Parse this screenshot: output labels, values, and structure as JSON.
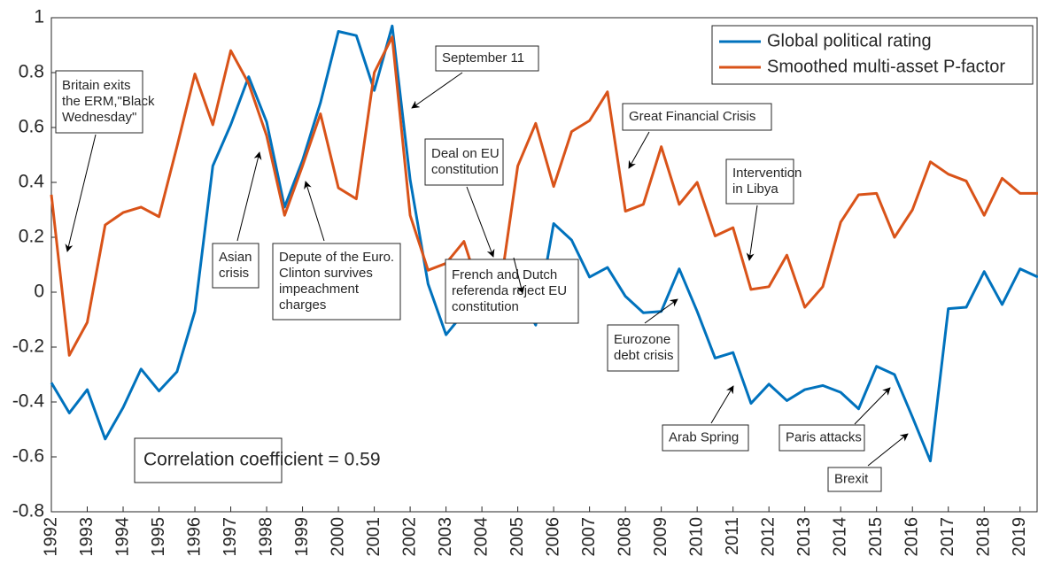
{
  "chart_data": {
    "type": "line",
    "x": [
      1992,
      1992.5,
      1993,
      1993.5,
      1994,
      1994.5,
      1995,
      1995.5,
      1996,
      1996.5,
      1997,
      1997.5,
      1998,
      1998.5,
      1999,
      1999.5,
      2000,
      2000.5,
      2001,
      2001.5,
      2002,
      2002.5,
      2003,
      2003.5,
      2004,
      2004.5,
      2005,
      2005.5,
      2006,
      2006.5,
      2007,
      2007.5,
      2008,
      2008.5,
      2009,
      2009.5,
      2010,
      2010.5,
      2011,
      2011.5,
      2012,
      2012.5,
      2013,
      2013.5,
      2014,
      2014.5,
      2015,
      2015.5,
      2016,
      2016.5,
      2017,
      2017.5,
      2018,
      2018.5,
      2019,
      2019.5
    ],
    "series": [
      {
        "name": "Global political rating",
        "color": "#0072bd",
        "values": [
          -0.33,
          -0.44,
          -0.355,
          -0.535,
          -0.42,
          -0.28,
          -0.36,
          -0.29,
          -0.07,
          0.46,
          0.61,
          0.785,
          0.62,
          0.31,
          0.48,
          0.69,
          0.95,
          0.935,
          0.735,
          0.97,
          0.41,
          0.03,
          -0.155,
          -0.075,
          -0.08,
          -0.09,
          0.0,
          -0.12,
          0.25,
          0.19,
          0.055,
          0.09,
          -0.015,
          -0.075,
          -0.07,
          0.085,
          -0.07,
          -0.24,
          -0.22,
          -0.405,
          -0.335,
          -0.395,
          -0.355,
          -0.34,
          -0.365,
          -0.425,
          -0.27,
          -0.3,
          -0.455,
          -0.615,
          -0.06,
          -0.055,
          0.075,
          -0.045,
          0.085,
          0.055
        ]
      },
      {
        "name": "Smoothed multi-asset P-factor",
        "color": "#d95319",
        "values": [
          0.355,
          -0.23,
          -0.11,
          0.245,
          0.29,
          0.31,
          0.275,
          0.53,
          0.795,
          0.61,
          0.88,
          0.76,
          0.57,
          0.28,
          0.46,
          0.65,
          0.38,
          0.34,
          0.8,
          0.93,
          0.28,
          0.08,
          0.105,
          0.185,
          -0.02,
          0.005,
          0.46,
          0.615,
          0.385,
          0.585,
          0.625,
          0.73,
          0.295,
          0.32,
          0.53,
          0.32,
          0.4,
          0.205,
          0.235,
          0.01,
          0.02,
          0.135,
          -0.055,
          0.02,
          0.255,
          0.355,
          0.36,
          0.2,
          0.3,
          0.475,
          0.43,
          0.405,
          0.28,
          0.415,
          0.36,
          0.36
        ]
      }
    ],
    "xlim": [
      1992,
      2019.5
    ],
    "xticks": [
      1992,
      1993,
      1994,
      1995,
      1996,
      1997,
      1998,
      1999,
      2000,
      2001,
      2002,
      2003,
      2004,
      2005,
      2006,
      2007,
      2008,
      2009,
      2010,
      2011,
      2012,
      2013,
      2014,
      2015,
      2016,
      2017,
      2018,
      2019
    ],
    "ylim": [
      -0.8,
      1
    ],
    "yticks": [
      -0.8,
      -0.6,
      -0.4,
      -0.2,
      0,
      0.2,
      0.4,
      0.6,
      0.8,
      1
    ],
    "legend": "upper right",
    "annotations": [
      {
        "text": [
          "Britain exits",
          "the  ERM,\"Black",
          "Wednesday\""
        ]
      },
      {
        "text": [
          "Asian",
          "crisis"
        ]
      },
      {
        "text": [
          "Depute of the Euro.",
          "Clinton survives",
          "impeachment",
          "charges"
        ]
      },
      {
        "text": [
          "September 11"
        ]
      },
      {
        "text": [
          "Deal on EU",
          "constitution"
        ]
      },
      {
        "text": [
          "French and Dutch",
          "referenda reject EU",
          "constitution"
        ]
      },
      {
        "text": [
          "Great Financial Crisis"
        ]
      },
      {
        "text": [
          "Intervention",
          "in Libya"
        ]
      },
      {
        "text": [
          "Eurozone",
          "debt crisis"
        ]
      },
      {
        "text": [
          "Arab Spring"
        ]
      },
      {
        "text": [
          "Paris attacks"
        ]
      },
      {
        "text": [
          "Brexit"
        ]
      },
      {
        "text": [
          "Correlation coefficient = 0.59"
        ]
      }
    ]
  }
}
